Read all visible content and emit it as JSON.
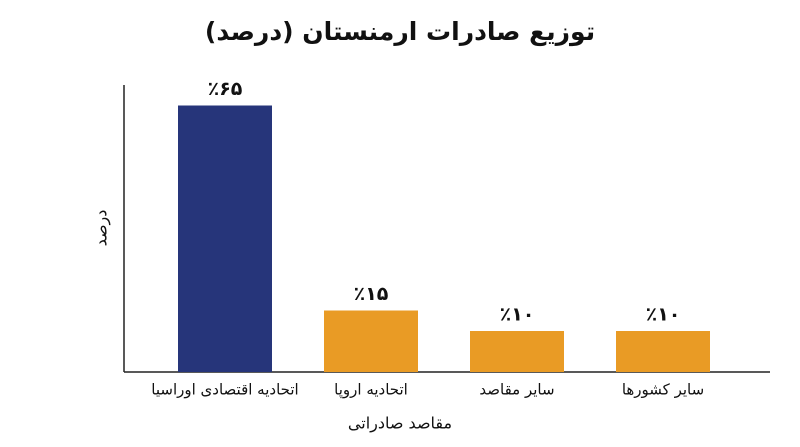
{
  "chart_data": {
    "type": "bar",
    "title": "توزیع صادرات ارمنستان (درصد)",
    "x_label": "مقاصد صادراتی",
    "y_label": "درصد",
    "categories": [
      "اتحادیه اقتصادی اوراسیا",
      "اتحادیه اروپا",
      "سایر مقاصد",
      "سایر کشورها"
    ],
    "values": [
      65,
      15,
      10,
      10
    ],
    "value_labels": [
      "٪۶۵",
      "٪۱۵",
      "٪۱۰",
      "٪۱۰"
    ],
    "colors": [
      "#26357a",
      "#e99b25",
      "#e99b25",
      "#e99b25"
    ],
    "ylim": [
      0,
      70
    ]
  }
}
